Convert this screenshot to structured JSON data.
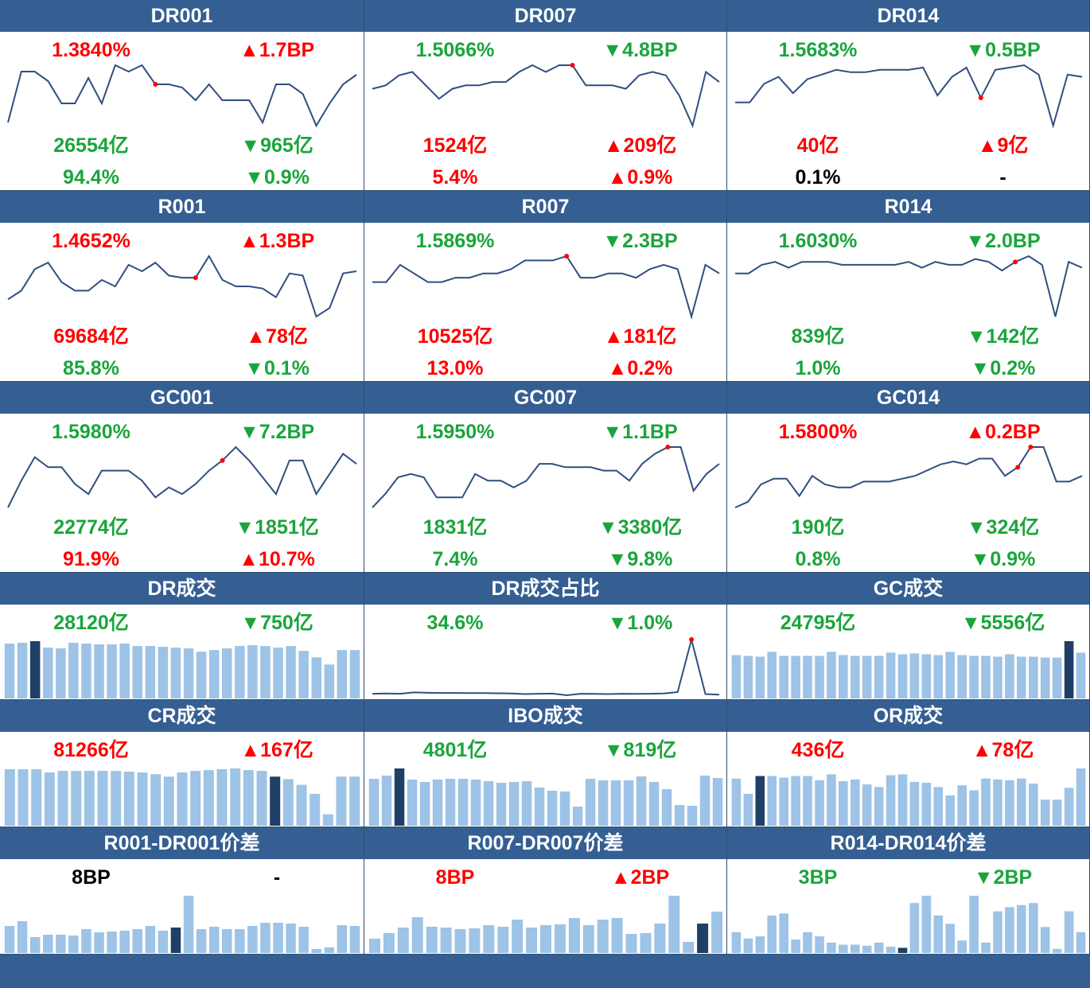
{
  "colors": {
    "up": "#ff0000",
    "down": "#1aa53c",
    "header": "#355f92",
    "bar": "#9dc3e6",
    "bar_highlight": "#1f3f66",
    "line": "#2f4f7f",
    "marker": "#ff0000"
  },
  "panels": [
    {
      "title": "DR001",
      "type": "line",
      "rows": [
        [
          {
            "text": "1.3840%",
            "color": "up"
          },
          {
            "text": "▲1.7BP",
            "color": "up"
          }
        ],
        [
          {
            "text": "26554亿",
            "color": "down"
          },
          {
            "text": "▼965亿",
            "color": "down"
          }
        ],
        [
          {
            "text": "94.4%",
            "color": "down"
          },
          {
            "text": "▼0.9%",
            "color": "down"
          }
        ]
      ],
      "series": [
        1.22,
        1.38,
        1.38,
        1.35,
        1.28,
        1.28,
        1.36,
        1.28,
        1.4,
        1.38,
        1.4,
        1.34,
        1.34,
        1.33,
        1.29,
        1.34,
        1.29,
        1.29,
        1.29,
        1.22,
        1.34,
        1.34,
        1.31,
        1.21,
        1.28,
        1.34,
        1.37
      ],
      "markers": [
        11
      ]
    },
    {
      "title": "DR007",
      "type": "line",
      "rows": [
        [
          {
            "text": "1.5066%",
            "color": "down"
          },
          {
            "text": "▼4.8BP",
            "color": "down"
          }
        ],
        [
          {
            "text": "1524亿",
            "color": "up"
          },
          {
            "text": "▲209亿",
            "color": "up"
          }
        ],
        [
          {
            "text": "5.4%",
            "color": "up"
          },
          {
            "text": "▲0.9%",
            "color": "up"
          }
        ]
      ],
      "series": [
        1.54,
        1.55,
        1.58,
        1.59,
        1.55,
        1.51,
        1.54,
        1.55,
        1.55,
        1.56,
        1.56,
        1.59,
        1.61,
        1.59,
        1.61,
        1.61,
        1.55,
        1.55,
        1.55,
        1.54,
        1.58,
        1.59,
        1.58,
        1.52,
        1.43,
        1.59,
        1.56
      ],
      "markers": [
        15
      ]
    },
    {
      "title": "DR014",
      "type": "line",
      "rows": [
        [
          {
            "text": "1.5683%",
            "color": "down"
          },
          {
            "text": "▼0.5BP",
            "color": "down"
          }
        ],
        [
          {
            "text": "40亿",
            "color": "up"
          },
          {
            "text": "▲9亿",
            "color": "up"
          }
        ],
        [
          {
            "text": "0.1%",
            "color": "black"
          },
          {
            "text": "-",
            "color": "black"
          }
        ]
      ],
      "series": [
        1.57,
        1.57,
        1.65,
        1.68,
        1.61,
        1.67,
        1.69,
        1.71,
        1.7,
        1.7,
        1.71,
        1.71,
        1.71,
        1.72,
        1.6,
        1.68,
        1.72,
        1.59,
        1.71,
        1.72,
        1.73,
        1.69,
        1.47,
        1.69,
        1.68
      ],
      "markers": [
        17
      ]
    },
    {
      "title": "R001",
      "type": "line",
      "rows": [
        [
          {
            "text": "1.4652%",
            "color": "up"
          },
          {
            "text": "▲1.3BP",
            "color": "up"
          }
        ],
        [
          {
            "text": "69684亿",
            "color": "up"
          },
          {
            "text": "▲78亿",
            "color": "up"
          }
        ],
        [
          {
            "text": "85.8%",
            "color": "down"
          },
          {
            "text": "▼0.1%",
            "color": "down"
          }
        ]
      ],
      "series": [
        1.36,
        1.4,
        1.5,
        1.53,
        1.44,
        1.4,
        1.4,
        1.45,
        1.42,
        1.52,
        1.49,
        1.53,
        1.47,
        1.46,
        1.46,
        1.56,
        1.45,
        1.42,
        1.42,
        1.41,
        1.37,
        1.48,
        1.47,
        1.28,
        1.32,
        1.48,
        1.49
      ],
      "markers": [
        14
      ]
    },
    {
      "title": "R007",
      "type": "line",
      "rows": [
        [
          {
            "text": "1.5869%",
            "color": "down"
          },
          {
            "text": "▼2.3BP",
            "color": "down"
          }
        ],
        [
          {
            "text": "10525亿",
            "color": "up"
          },
          {
            "text": "▲181亿",
            "color": "up"
          }
        ],
        [
          {
            "text": "13.0%",
            "color": "up"
          },
          {
            "text": "▲0.2%",
            "color": "up"
          }
        ]
      ],
      "series": [
        1.61,
        1.61,
        1.65,
        1.63,
        1.61,
        1.61,
        1.62,
        1.62,
        1.63,
        1.63,
        1.64,
        1.66,
        1.66,
        1.66,
        1.67,
        1.62,
        1.62,
        1.63,
        1.63,
        1.62,
        1.64,
        1.65,
        1.64,
        1.53,
        1.65,
        1.63
      ],
      "markers": [
        14
      ]
    },
    {
      "title": "R014",
      "type": "line",
      "rows": [
        [
          {
            "text": "1.6030%",
            "color": "down"
          },
          {
            "text": "▼2.0BP",
            "color": "down"
          }
        ],
        [
          {
            "text": "839亿",
            "color": "down"
          },
          {
            "text": "▼142亿",
            "color": "down"
          }
        ],
        [
          {
            "text": "1.0%",
            "color": "down"
          },
          {
            "text": "▼0.2%",
            "color": "down"
          }
        ]
      ],
      "series": [
        1.65,
        1.65,
        1.68,
        1.69,
        1.67,
        1.69,
        1.69,
        1.69,
        1.68,
        1.68,
        1.68,
        1.68,
        1.68,
        1.69,
        1.67,
        1.69,
        1.68,
        1.68,
        1.7,
        1.69,
        1.66,
        1.69,
        1.71,
        1.68,
        1.5,
        1.69,
        1.67
      ],
      "markers": [
        21
      ]
    },
    {
      "title": "GC001",
      "type": "line",
      "rows": [
        [
          {
            "text": "1.5980%",
            "color": "down"
          },
          {
            "text": "▼7.2BP",
            "color": "down"
          }
        ],
        [
          {
            "text": "22774亿",
            "color": "down"
          },
          {
            "text": "▼1851亿",
            "color": "down"
          }
        ],
        [
          {
            "text": "91.9%",
            "color": "up"
          },
          {
            "text": "▲10.7%",
            "color": "up"
          }
        ]
      ],
      "series": [
        1.45,
        1.53,
        1.6,
        1.57,
        1.57,
        1.52,
        1.49,
        1.56,
        1.56,
        1.56,
        1.53,
        1.48,
        1.51,
        1.49,
        1.52,
        1.56,
        1.59,
        1.63,
        1.59,
        1.54,
        1.49,
        1.59,
        1.59,
        1.49,
        1.55,
        1.61,
        1.58
      ],
      "markers": [
        16
      ]
    },
    {
      "title": "GC007",
      "type": "line",
      "rows": [
        [
          {
            "text": "1.5950%",
            "color": "down"
          },
          {
            "text": "▼1.1BP",
            "color": "down"
          }
        ],
        [
          {
            "text": "1831亿",
            "color": "down"
          },
          {
            "text": "▼3380亿",
            "color": "down"
          }
        ],
        [
          {
            "text": "7.4%",
            "color": "down"
          },
          {
            "text": "▼9.8%",
            "color": "down"
          }
        ]
      ],
      "series": [
        1.45,
        1.49,
        1.54,
        1.55,
        1.54,
        1.48,
        1.48,
        1.48,
        1.55,
        1.53,
        1.53,
        1.51,
        1.53,
        1.58,
        1.58,
        1.57,
        1.57,
        1.57,
        1.56,
        1.56,
        1.53,
        1.58,
        1.61,
        1.63,
        1.63,
        1.5,
        1.55,
        1.58
      ],
      "markers": [
        23
      ]
    },
    {
      "title": "GC014",
      "type": "line",
      "rows": [
        [
          {
            "text": "1.5800%",
            "color": "up"
          },
          {
            "text": "▲0.2BP",
            "color": "up"
          }
        ],
        [
          {
            "text": "190亿",
            "color": "down"
          },
          {
            "text": "▼324亿",
            "color": "down"
          }
        ],
        [
          {
            "text": "0.8%",
            "color": "down"
          },
          {
            "text": "▼0.9%",
            "color": "down"
          }
        ]
      ],
      "series": [
        1.51,
        1.53,
        1.59,
        1.61,
        1.61,
        1.55,
        1.62,
        1.59,
        1.58,
        1.58,
        1.6,
        1.6,
        1.6,
        1.61,
        1.62,
        1.64,
        1.66,
        1.67,
        1.66,
        1.68,
        1.68,
        1.62,
        1.65,
        1.72,
        1.72,
        1.6,
        1.6,
        1.62
      ],
      "markers": [
        22,
        23
      ]
    },
    {
      "title": "DR成交",
      "type": "bar",
      "rows": [
        [
          {
            "text": "28120亿",
            "color": "down"
          },
          {
            "text": "▼750亿",
            "color": "down"
          }
        ]
      ],
      "series": [
        68,
        69,
        71,
        63,
        62,
        69,
        68,
        67,
        67,
        68,
        65,
        65,
        64,
        63,
        62,
        58,
        60,
        62,
        65,
        66,
        65,
        63,
        65,
        59,
        51,
        42,
        60,
        60
      ],
      "highlight": [
        2
      ]
    },
    {
      "title": "DR成交占比",
      "type": "line",
      "rows": [
        [
          {
            "text": "34.6%",
            "color": "down"
          },
          {
            "text": "▼1.0%",
            "color": "down"
          }
        ]
      ],
      "series": [
        2.0,
        2.2,
        2.0,
        2.8,
        2.6,
        2.5,
        2.5,
        2.4,
        2.4,
        2.3,
        2.2,
        1.8,
        2.0,
        2.1,
        1.1,
        2.0,
        1.9,
        1.8,
        2.0,
        1.9,
        2.0,
        2.2,
        3.0,
        34.6,
        1.8,
        1.5
      ],
      "markers": [
        23
      ]
    },
    {
      "title": "GC成交",
      "type": "bar",
      "rows": [
        [
          {
            "text": "24795亿",
            "color": "down"
          },
          {
            "text": "▼5556亿",
            "color": "down"
          }
        ]
      ],
      "series": [
        53,
        52,
        51,
        57,
        52,
        52,
        52,
        52,
        57,
        53,
        52,
        52,
        52,
        56,
        54,
        55,
        54,
        53,
        57,
        53,
        52,
        52,
        51,
        54,
        51,
        51,
        50,
        50,
        70,
        56
      ],
      "highlight": [
        28
      ]
    },
    {
      "title": "CR成交",
      "type": "bar",
      "rows": [
        [
          {
            "text": "81266亿",
            "color": "up"
          },
          {
            "text": "▲167亿",
            "color": "up"
          }
        ]
      ],
      "series": [
        69,
        69,
        69,
        65,
        67,
        67,
        67,
        67,
        67,
        66,
        65,
        63,
        60,
        65,
        67,
        68,
        69,
        70,
        68,
        67,
        60,
        57,
        50,
        39,
        14,
        60,
        60
      ],
      "highlight": [
        20
      ]
    },
    {
      "title": "IBO成交",
      "type": "bar",
      "rows": [
        [
          {
            "text": "4801亿",
            "color": "down"
          },
          {
            "text": "▼819亿",
            "color": "down"
          }
        ]
      ],
      "series": [
        59,
        63,
        72,
        58,
        55,
        58,
        59,
        59,
        58,
        56,
        54,
        55,
        56,
        48,
        44,
        43,
        24,
        59,
        57,
        57,
        57,
        62,
        55,
        46,
        26,
        25,
        63,
        60
      ],
      "highlight": [
        2
      ]
    },
    {
      "title": "OR成交",
      "type": "bar",
      "rows": [
        [
          {
            "text": "436亿",
            "color": "up"
          },
          {
            "text": "▲78亿",
            "color": "up"
          }
        ]
      ],
      "series": [
        56,
        38,
        59,
        59,
        57,
        59,
        59,
        54,
        61,
        53,
        55,
        49,
        46,
        60,
        61,
        52,
        51,
        46,
        36,
        48,
        42,
        56,
        55,
        54,
        56,
        50,
        31,
        31,
        45,
        68
      ],
      "highlight": [
        2
      ]
    },
    {
      "title": "R001-DR001价差",
      "type": "bar",
      "rows": [
        [
          {
            "text": "8BP",
            "color": "black"
          },
          {
            "text": "-",
            "color": "black"
          }
        ]
      ],
      "series": [
        34,
        40,
        20,
        23,
        23,
        22,
        30,
        26,
        27,
        28,
        30,
        34,
        28,
        32,
        72,
        30,
        33,
        30,
        30,
        34,
        38,
        38,
        37,
        33,
        5,
        7,
        35,
        34
      ],
      "highlight": [
        13
      ]
    },
    {
      "title": "R007-DR007价差",
      "type": "bar",
      "rows": [
        [
          {
            "text": "8BP",
            "color": "up"
          },
          {
            "text": "▲2BP",
            "color": "up"
          }
        ]
      ],
      "series": [
        18,
        25,
        32,
        45,
        33,
        32,
        30,
        31,
        35,
        33,
        42,
        32,
        35,
        36,
        44,
        35,
        42,
        44,
        24,
        25,
        37,
        72,
        14,
        37,
        52
      ],
      "highlight": [
        23
      ]
    },
    {
      "title": "R014-DR014价差",
      "type": "bar",
      "rows": [
        [
          {
            "text": "3BP",
            "color": "down"
          },
          {
            "text": "▼2BP",
            "color": "down"
          }
        ]
      ],
      "series": [
        20,
        14,
        16,
        36,
        38,
        13,
        20,
        16,
        10,
        8,
        8,
        7,
        10,
        6,
        5,
        48,
        55,
        36,
        28,
        12,
        55,
        10,
        40,
        44,
        46,
        48,
        25,
        4,
        40,
        20
      ],
      "highlight": [
        14
      ]
    }
  ]
}
